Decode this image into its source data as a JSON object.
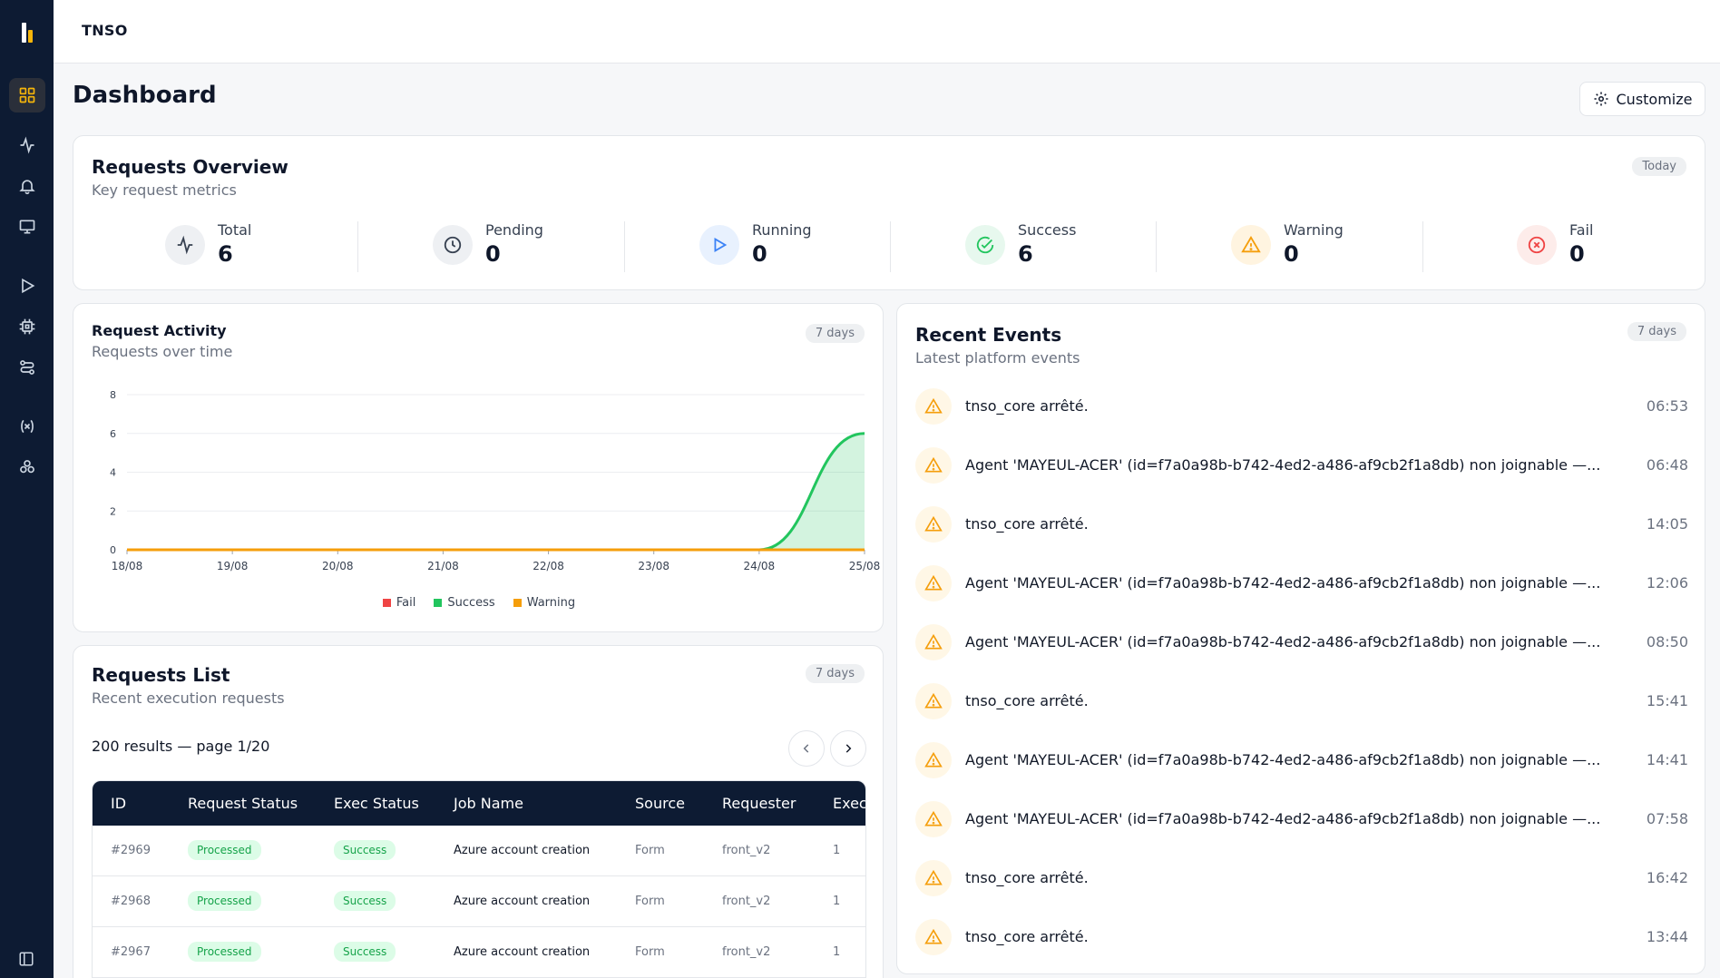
{
  "app": {
    "brand": "TNSO"
  },
  "sidebar": {
    "items": [
      {
        "name": "dashboard-icon",
        "active": true
      },
      {
        "name": "activity-icon"
      },
      {
        "name": "bell-icon"
      },
      {
        "name": "monitor-icon"
      },
      {
        "name": "play-icon"
      },
      {
        "name": "cpu-icon"
      },
      {
        "name": "workflow-icon"
      },
      {
        "name": "variable-icon"
      },
      {
        "name": "integrations-icon"
      }
    ]
  },
  "header": {
    "title": "Dashboard",
    "customize_label": "Customize"
  },
  "overview": {
    "title": "Requests Overview",
    "subtitle": "Key request metrics",
    "period": "Today",
    "stats": [
      {
        "label": "Total",
        "value": "6",
        "color": "#374151",
        "bg": "#eef0f3",
        "icon": "activity-icon"
      },
      {
        "label": "Pending",
        "value": "0",
        "color": "#374151",
        "bg": "#eef0f3",
        "icon": "clock-icon"
      },
      {
        "label": "Running",
        "value": "0",
        "color": "#3b82f6",
        "bg": "#e8f1fe",
        "icon": "play-icon"
      },
      {
        "label": "Success",
        "value": "6",
        "color": "#22c55e",
        "bg": "#e7f8ee",
        "icon": "check-circle-icon"
      },
      {
        "label": "Warning",
        "value": "0",
        "color": "#f59e0b",
        "bg": "#fff4e0",
        "icon": "warning-icon"
      },
      {
        "label": "Fail",
        "value": "0",
        "color": "#ef4444",
        "bg": "#fdecea",
        "icon": "x-circle-icon"
      }
    ]
  },
  "activity": {
    "title": "Request Activity",
    "subtitle": "Requests over time",
    "period": "7 days",
    "chart_data": {
      "type": "area",
      "x": [
        "18/08",
        "19/08",
        "20/08",
        "21/08",
        "22/08",
        "23/08",
        "24/08",
        "25/08"
      ],
      "yticks": [
        "0",
        "2",
        "4",
        "6",
        "8"
      ],
      "ylim": [
        0,
        8
      ],
      "legend_position": "bottom",
      "series": [
        {
          "name": "Fail",
          "color": "#ef4444",
          "values": [
            0,
            0,
            0,
            0,
            0,
            0,
            0,
            0
          ]
        },
        {
          "name": "Success",
          "color": "#22c55e",
          "values": [
            0,
            0,
            0,
            0,
            0,
            0,
            0,
            6
          ]
        },
        {
          "name": "Warning",
          "color": "#f59e0b",
          "values": [
            0,
            0,
            0,
            0,
            0,
            0,
            0,
            0
          ]
        }
      ]
    }
  },
  "requests": {
    "title": "Requests List",
    "subtitle": "Recent execution requests",
    "period": "7 days",
    "results_text": "200 results — page 1/20",
    "columns": [
      "ID",
      "Request Status",
      "Exec Status",
      "Job Name",
      "Source",
      "Requester",
      "Exec"
    ],
    "rows": [
      {
        "id": "#2969",
        "request_status": "Processed",
        "exec_status": "Success",
        "job": "Azure account creation",
        "source": "Form",
        "requester": "front_v2",
        "exec": "1"
      },
      {
        "id": "#2968",
        "request_status": "Processed",
        "exec_status": "Success",
        "job": "Azure account creation",
        "source": "Form",
        "requester": "front_v2",
        "exec": "1"
      },
      {
        "id": "#2967",
        "request_status": "Processed",
        "exec_status": "Success",
        "job": "Azure account creation",
        "source": "Form",
        "requester": "front_v2",
        "exec": "1"
      }
    ]
  },
  "events": {
    "title": "Recent Events",
    "subtitle": "Latest platform events",
    "period": "7 days",
    "items": [
      {
        "text": "tnso_core arrêté.",
        "time": "06:53"
      },
      {
        "text": "Agent 'MAYEUL-ACER' (id=f7a0a98b-b742-4ed2-a486-af9cb2f1a8db) non joignable —...",
        "time": "06:48"
      },
      {
        "text": "tnso_core arrêté.",
        "time": "14:05"
      },
      {
        "text": "Agent 'MAYEUL-ACER' (id=f7a0a98b-b742-4ed2-a486-af9cb2f1a8db) non joignable —...",
        "time": "12:06"
      },
      {
        "text": "Agent 'MAYEUL-ACER' (id=f7a0a98b-b742-4ed2-a486-af9cb2f1a8db) non joignable —...",
        "time": "08:50"
      },
      {
        "text": "tnso_core arrêté.",
        "time": "15:41"
      },
      {
        "text": "Agent 'MAYEUL-ACER' (id=f7a0a98b-b742-4ed2-a486-af9cb2f1a8db) non joignable —...",
        "time": "14:41"
      },
      {
        "text": "Agent 'MAYEUL-ACER' (id=f7a0a98b-b742-4ed2-a486-af9cb2f1a8db) non joignable —...",
        "time": "07:58"
      },
      {
        "text": "tnso_core arrêté.",
        "time": "16:42"
      },
      {
        "text": "tnso_core arrêté.",
        "time": "13:44"
      }
    ]
  }
}
